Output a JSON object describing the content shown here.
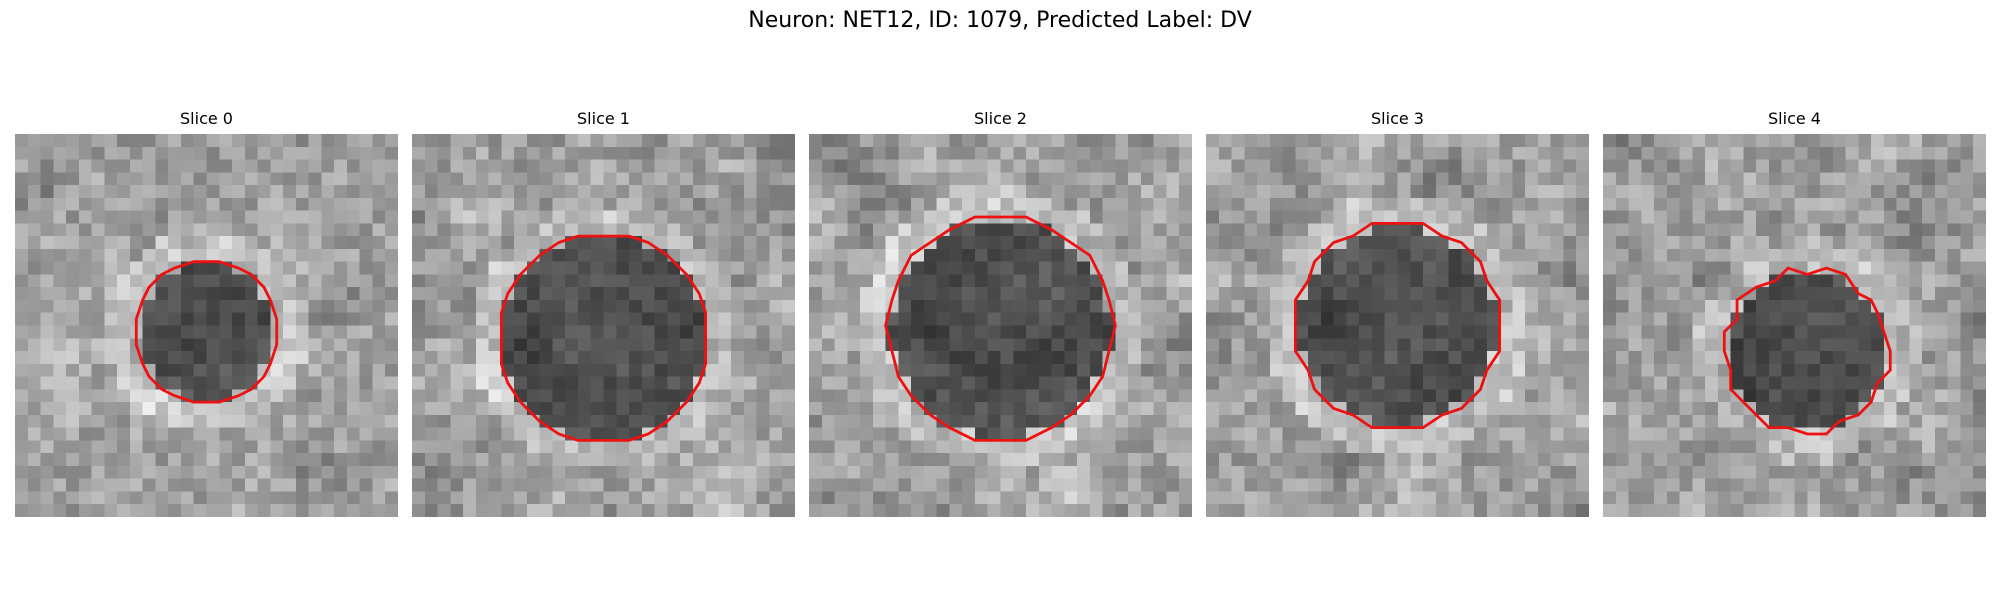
{
  "figure": {
    "title": "Neuron: NET12, ID: 1079, Predicted Label: DV"
  },
  "panels": [
    {
      "title": "Slice 0"
    },
    {
      "title": "Slice 1"
    },
    {
      "title": "Slice 2"
    },
    {
      "title": "Slice 3"
    },
    {
      "title": "Slice 4"
    }
  ],
  "colors": {
    "background": "#ffffff",
    "roi_outline": "#ee1111"
  }
}
